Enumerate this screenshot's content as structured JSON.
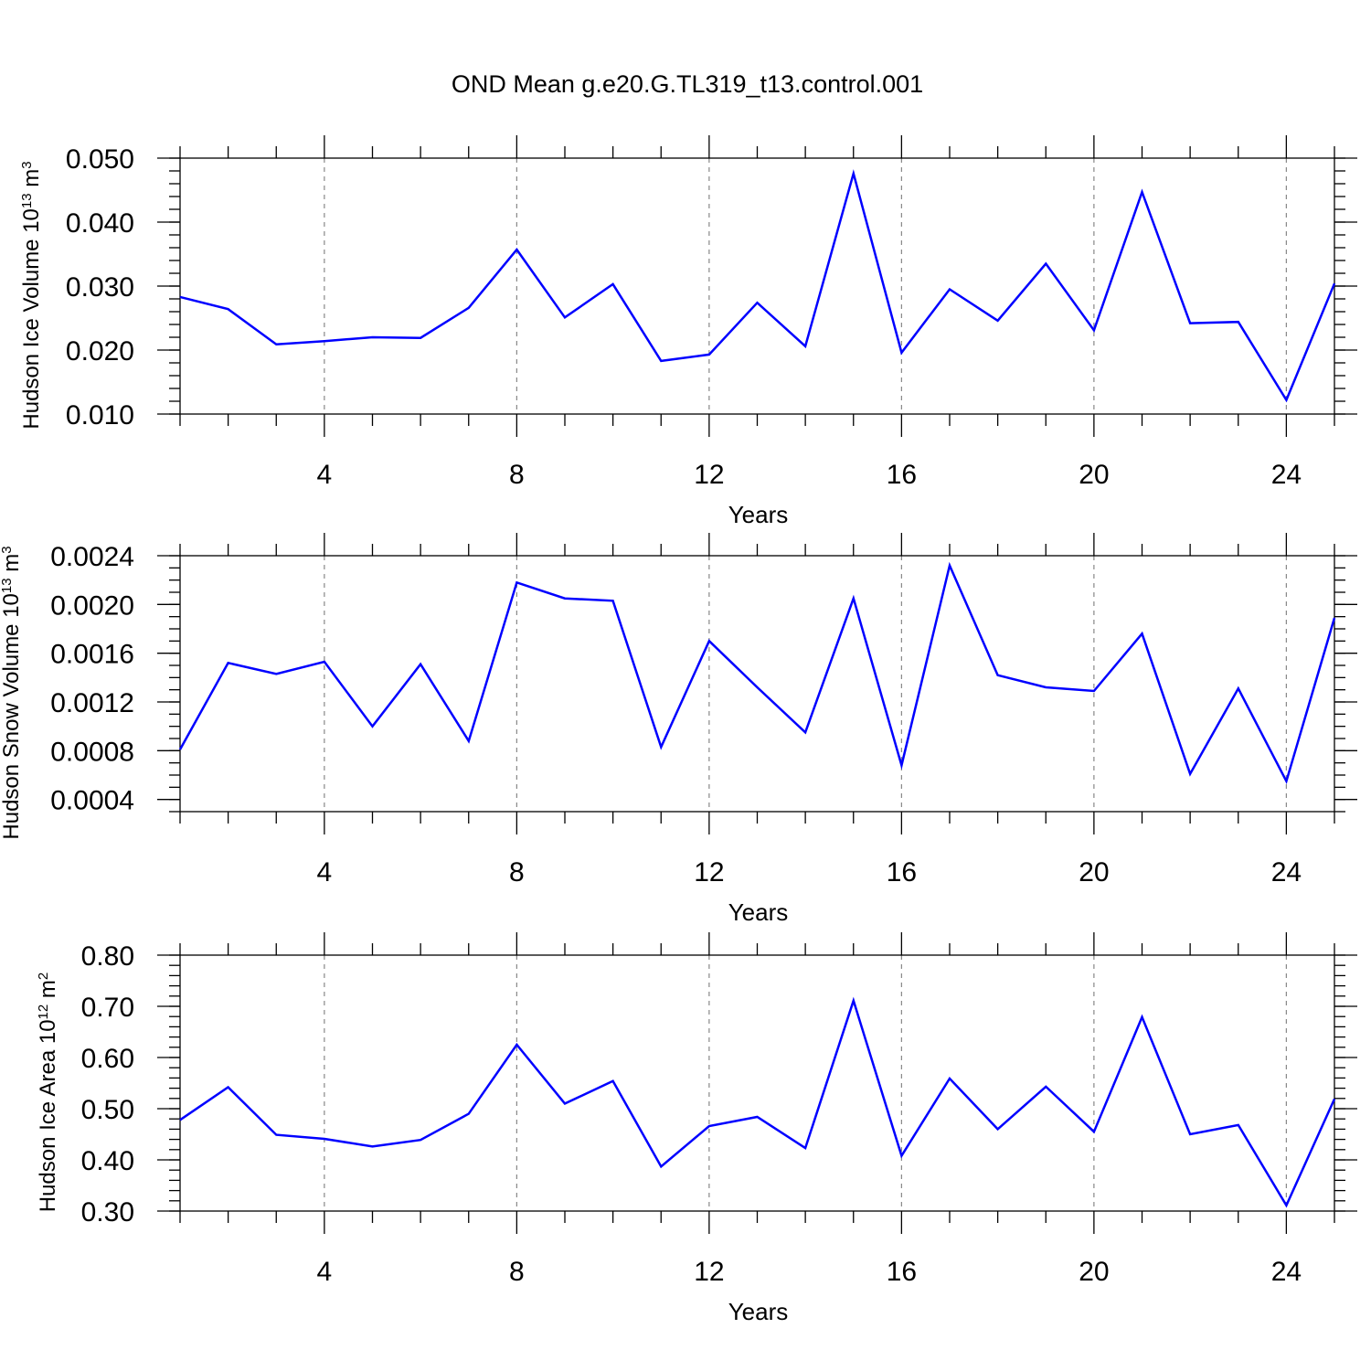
{
  "title": "OND Mean g.e20.G.TL319_t13.control.001",
  "chart_data": [
    {
      "type": "line",
      "ylabel": "Hudson Ice Volume 10",
      "ylabel_exp": "13",
      "ylabel_unit": " m",
      "ylabel_unit_exp": "3",
      "xlabel": "Years",
      "xlim": [
        1,
        25
      ],
      "ylim": [
        0.01,
        0.05
      ],
      "x_ticks": [
        4,
        8,
        12,
        16,
        20,
        24
      ],
      "x_tick_labels": [
        "4",
        "8",
        "12",
        "16",
        "20",
        "24"
      ],
      "y_ticks": [
        0.01,
        0.02,
        0.03,
        0.04,
        0.05
      ],
      "y_tick_labels": [
        "0.010",
        "0.020",
        "0.030",
        "0.040",
        "0.050"
      ],
      "y_minor_step": 0.002,
      "grid": "vertical dashed at major x ticks",
      "line_color": "#0000ff",
      "x": [
        1,
        2,
        3,
        4,
        5,
        6,
        7,
        8,
        9,
        10,
        11,
        12,
        13,
        14,
        15,
        16,
        17,
        18,
        19,
        20,
        21,
        22,
        23,
        24,
        25
      ],
      "values": [
        0.0283,
        0.0264,
        0.0209,
        0.0214,
        0.022,
        0.0219,
        0.0266,
        0.0357,
        0.0251,
        0.0303,
        0.0183,
        0.0193,
        0.0274,
        0.0206,
        0.0476,
        0.0196,
        0.0295,
        0.0246,
        0.0335,
        0.0231,
        0.0447,
        0.0242,
        0.0244,
        0.0122,
        0.0304
      ]
    },
    {
      "type": "line",
      "ylabel": "Hudson Snow Volume 10",
      "ylabel_exp": "13",
      "ylabel_unit": " m",
      "ylabel_unit_exp": "3",
      "xlabel": "Years",
      "xlim": [
        1,
        25
      ],
      "ylim": [
        0.0003,
        0.0024
      ],
      "x_ticks": [
        4,
        8,
        12,
        16,
        20,
        24
      ],
      "x_tick_labels": [
        "4",
        "8",
        "12",
        "16",
        "20",
        "24"
      ],
      "y_ticks": [
        0.0004,
        0.0008,
        0.0012,
        0.0016,
        0.002,
        0.0024
      ],
      "y_tick_labels": [
        "0.0004",
        "0.0008",
        "0.0012",
        "0.0016",
        "0.0020",
        "0.0024"
      ],
      "y_minor_step": 0.0001,
      "grid": "vertical dashed at major x ticks",
      "line_color": "#0000ff",
      "x": [
        1,
        2,
        3,
        4,
        5,
        6,
        7,
        8,
        9,
        10,
        11,
        12,
        13,
        14,
        15,
        16,
        17,
        18,
        19,
        20,
        21,
        22,
        23,
        24,
        25
      ],
      "values": [
        0.00081,
        0.00152,
        0.00143,
        0.00153,
        0.001,
        0.00151,
        0.00088,
        0.00218,
        0.00205,
        0.00203,
        0.00083,
        0.0017,
        0.00132,
        0.00095,
        0.00205,
        0.00068,
        0.00232,
        0.00142,
        0.00132,
        0.00129,
        0.00176,
        0.00061,
        0.00131,
        0.00055,
        0.00189
      ]
    },
    {
      "type": "line",
      "ylabel": "Hudson Ice Area 10",
      "ylabel_exp": "12",
      "ylabel_unit": " m",
      "ylabel_unit_exp": "2",
      "xlabel": "Years",
      "xlim": [
        1,
        25
      ],
      "ylim": [
        0.3,
        0.8
      ],
      "x_ticks": [
        4,
        8,
        12,
        16,
        20,
        24
      ],
      "x_tick_labels": [
        "4",
        "8",
        "12",
        "16",
        "20",
        "24"
      ],
      "y_ticks": [
        0.3,
        0.4,
        0.5,
        0.6,
        0.7,
        0.8
      ],
      "y_tick_labels": [
        "0.30",
        "0.40",
        "0.50",
        "0.60",
        "0.70",
        "0.80"
      ],
      "y_minor_step": 0.02,
      "grid": "vertical dashed at major x ticks",
      "line_color": "#0000ff",
      "x": [
        1,
        2,
        3,
        4,
        5,
        6,
        7,
        8,
        9,
        10,
        11,
        12,
        13,
        14,
        15,
        16,
        17,
        18,
        19,
        20,
        21,
        22,
        23,
        24,
        25
      ],
      "values": [
        0.478,
        0.542,
        0.449,
        0.441,
        0.426,
        0.439,
        0.49,
        0.625,
        0.51,
        0.554,
        0.387,
        0.466,
        0.484,
        0.423,
        0.711,
        0.408,
        0.559,
        0.46,
        0.543,
        0.455,
        0.679,
        0.45,
        0.468,
        0.311,
        0.519
      ]
    }
  ]
}
